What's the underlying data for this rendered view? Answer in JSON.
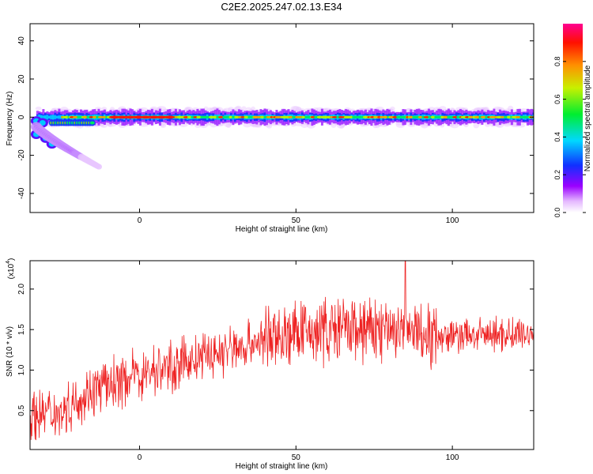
{
  "title": "C2E2.2025.247.02.13.E34",
  "chart_data": [
    {
      "type": "heatmap",
      "xlabel": "Height of straight line (km)",
      "ylabel": "Frequency (Hz)",
      "xlim": [
        -35,
        126
      ],
      "ylim": [
        -50,
        49
      ],
      "xticks": [
        "0",
        "50",
        "100"
      ],
      "yticks": [
        "40",
        "20",
        "0",
        "-20",
        "-40"
      ],
      "colorbar": {
        "label": "Normalized spectral amplitude",
        "range": [
          0,
          1
        ],
        "ticks": [
          "0.0",
          "0.2",
          "0.4",
          "0.6",
          "0.8"
        ]
      },
      "main_band_frequency_hz": 0,
      "secondary_branch": {
        "start_km": -33,
        "end_km": -13,
        "start_hz": -5,
        "end_hz": -26
      }
    },
    {
      "type": "line",
      "xlabel": "Height of straight line (km)",
      "ylabel": "SNR (10 * v/v)",
      "scale_label": "(x10",
      "scale_exponent": "4",
      "scale_close": ")",
      "xlim": [
        -35,
        126
      ],
      "ylim": [
        0.02,
        2.35
      ],
      "xticks": [
        "0",
        "50",
        "100"
      ],
      "yticks": [
        "2.0",
        "1.5",
        "1.0",
        "0.5"
      ],
      "series_color": "#ee2222",
      "trend_points": [
        {
          "x": -35,
          "y": 0.45
        },
        {
          "x": -25,
          "y": 0.5
        },
        {
          "x": -15,
          "y": 0.75
        },
        {
          "x": 0,
          "y": 0.95
        },
        {
          "x": 20,
          "y": 1.15
        },
        {
          "x": 40,
          "y": 1.38
        },
        {
          "x": 60,
          "y": 1.5
        },
        {
          "x": 80,
          "y": 1.5
        },
        {
          "x": 100,
          "y": 1.42
        },
        {
          "x": 126,
          "y": 1.45
        }
      ],
      "peak": {
        "x": 85,
        "y": 2.35
      }
    }
  ]
}
